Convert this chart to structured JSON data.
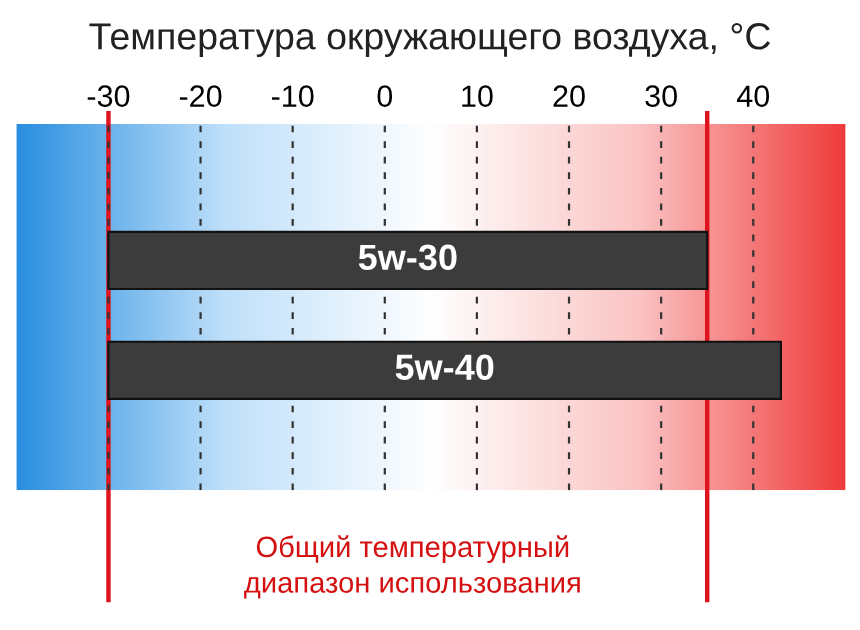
{
  "chart_data": {
    "type": "bar",
    "orientation": "horizontal",
    "title": "Температура окружающего воздуха, °C",
    "categories": [
      "5w-30",
      "5w-40"
    ],
    "base": [
      -30,
      -30
    ],
    "values": [
      65,
      73
    ],
    "color": "#3c3c3c",
    "xlim": [
      -40,
      50
    ],
    "xticks": [
      -30,
      -20,
      -10,
      0,
      10,
      20,
      30,
      40
    ],
    "tick_labels": "x",
    "grid": "x",
    "ref_lines": [
      {
        "axis": "x",
        "value": -30,
        "color": "#e0141e"
      },
      {
        "axis": "x",
        "value": 35,
        "color": "#e0141e"
      }
    ],
    "annotations": [
      "Общий температурный\nдиапазон использования"
    ]
  }
}
